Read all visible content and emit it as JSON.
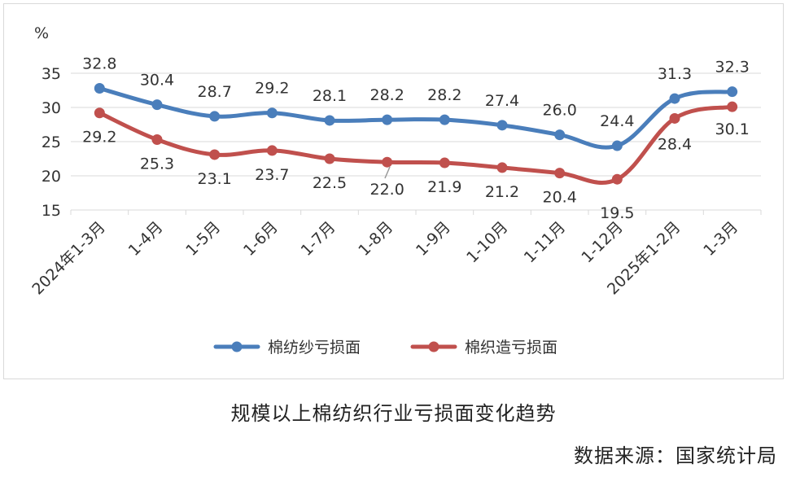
{
  "caption": "规模以上棉纺织行业亏损面变化趋势",
  "source": "数据来源：国家统计局",
  "chart_data": {
    "type": "line",
    "unit_label": "%",
    "categories": [
      "2024年1-3月",
      "1-4月",
      "1-5月",
      "1-6月",
      "1-7月",
      "1-8月",
      "1-9月",
      "1-10月",
      "1-11月",
      "1-12月",
      "2025年1-2月",
      "1-3月"
    ],
    "yticks": [
      15,
      20,
      25,
      30,
      35
    ],
    "ylim": [
      15,
      35
    ],
    "grid": true,
    "legend_position": "bottom",
    "series": [
      {
        "name": "棉纺纱亏损面",
        "color": "#4a7ebb",
        "values": [
          32.8,
          30.4,
          28.7,
          29.2,
          28.1,
          28.2,
          28.2,
          27.4,
          26.0,
          24.4,
          31.3,
          32.3
        ],
        "labels": [
          "32.8",
          "30.4",
          "28.7",
          "29.2",
          "28.1",
          "28.2",
          "28.2",
          "27.4",
          "26.0",
          "24.4",
          "31.3",
          "32.3"
        ]
      },
      {
        "name": "棉织造亏损面",
        "color": "#c0504d",
        "values": [
          29.2,
          25.3,
          23.1,
          23.7,
          22.5,
          22.0,
          21.9,
          21.2,
          20.4,
          19.5,
          28.4,
          30.1
        ],
        "labels": [
          "29.2",
          "25.3",
          "23.1",
          "23.7",
          "22.5",
          "22.0",
          "21.9",
          "21.2",
          "20.4",
          "19.5",
          "28.4",
          "30.1"
        ]
      }
    ]
  }
}
